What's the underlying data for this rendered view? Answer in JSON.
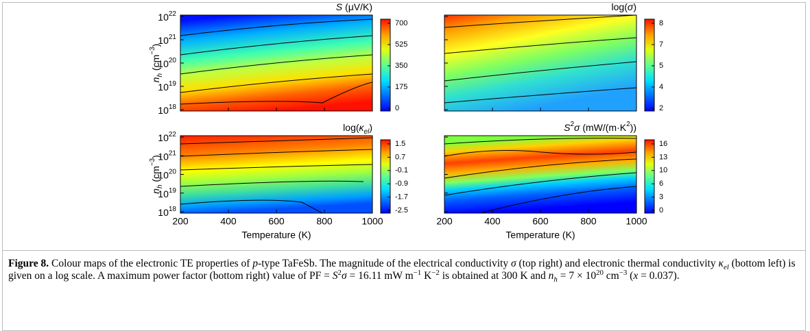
{
  "panels": [
    {
      "title": [
        {
          "text": "S",
          "style": "italic"
        },
        {
          "text": " (μV/K)",
          "style": "plain"
        }
      ],
      "colorbar_ticks": [
        700,
        525,
        350,
        175,
        0
      ]
    },
    {
      "title": [
        {
          "text": "log(",
          "style": "plain"
        },
        {
          "text": "σ",
          "style": "italic"
        },
        {
          "text": ")",
          "style": "plain"
        }
      ],
      "colorbar_ticks": [
        8,
        7,
        5,
        4,
        2
      ]
    },
    {
      "title": [
        {
          "text": "log(",
          "style": "plain"
        },
        {
          "text": "κ",
          "style": "italic"
        },
        {
          "text": "el",
          "style": "sub-italic"
        },
        {
          "text": ")",
          "style": "plain"
        }
      ],
      "colorbar_ticks": [
        1.5,
        0.7,
        -0.1,
        -0.9,
        -1.7,
        -2.5
      ]
    },
    {
      "title": [
        {
          "text": "S",
          "style": "italic"
        },
        {
          "text": "2",
          "style": "sup"
        },
        {
          "text": "σ",
          "style": "italic"
        },
        {
          "text": " (mW/(m·K",
          "style": "plain"
        },
        {
          "text": "2",
          "style": "sup"
        },
        {
          "text": "))",
          "style": "plain"
        }
      ],
      "colorbar_ticks": [
        16,
        13,
        10,
        6,
        3,
        0
      ]
    }
  ],
  "y_axis": {
    "label": [
      {
        "text": "n",
        "style": "italic"
      },
      {
        "text": "h",
        "style": "sub-italic"
      },
      {
        "text": " (cm",
        "style": "plain"
      },
      {
        "text": "−3",
        "style": "sup"
      },
      {
        "text": ")",
        "style": "plain"
      }
    ],
    "ticks": [
      {
        "base": 10,
        "exp": 22
      },
      {
        "base": 10,
        "exp": 21
      },
      {
        "base": 10,
        "exp": 20
      },
      {
        "base": 10,
        "exp": 19
      },
      {
        "base": 10,
        "exp": 18
      }
    ]
  },
  "x_axis": {
    "label": "Temperature (K)",
    "ticks": [
      200,
      400,
      600,
      800,
      1000
    ]
  },
  "caption": {
    "segments": [
      {
        "text": "Figure 8.",
        "style": "bold"
      },
      {
        "text": " Colour maps of the electronic TE properties of ",
        "style": "plain"
      },
      {
        "text": "p",
        "style": "italic"
      },
      {
        "text": "-type TaFeSb. The magnitude of the electrical conductivity ",
        "style": "plain"
      },
      {
        "text": "σ",
        "style": "italic"
      },
      {
        "text": " (top right) and electronic thermal conductivity ",
        "style": "plain"
      },
      {
        "text": "κ",
        "style": "italic"
      },
      {
        "text": "el",
        "style": "sub-italic"
      },
      {
        "text": " (bottom left) is given on a log scale. A maximum power factor (bottom right) value of PF = ",
        "style": "plain"
      },
      {
        "text": "S",
        "style": "italic"
      },
      {
        "text": "2",
        "style": "sup"
      },
      {
        "text": "σ",
        "style": "italic"
      },
      {
        "text": " = 16.11 mW m",
        "style": "plain"
      },
      {
        "text": "−1",
        "style": "sup"
      },
      {
        "text": " K",
        "style": "plain"
      },
      {
        "text": "−2",
        "style": "sup"
      },
      {
        "text": " is obtained at 300 K and ",
        "style": "plain"
      },
      {
        "text": "n",
        "style": "italic"
      },
      {
        "text": "h",
        "style": "sub-italic"
      },
      {
        "text": " = 7 × 10",
        "style": "plain"
      },
      {
        "text": "20",
        "style": "sup"
      },
      {
        "text": " cm",
        "style": "plain"
      },
      {
        "text": "−3",
        "style": "sup"
      },
      {
        "text": " (",
        "style": "plain"
      },
      {
        "text": "x",
        "style": "italic"
      },
      {
        "text": " = 0.037).",
        "style": "plain"
      }
    ]
  }
}
